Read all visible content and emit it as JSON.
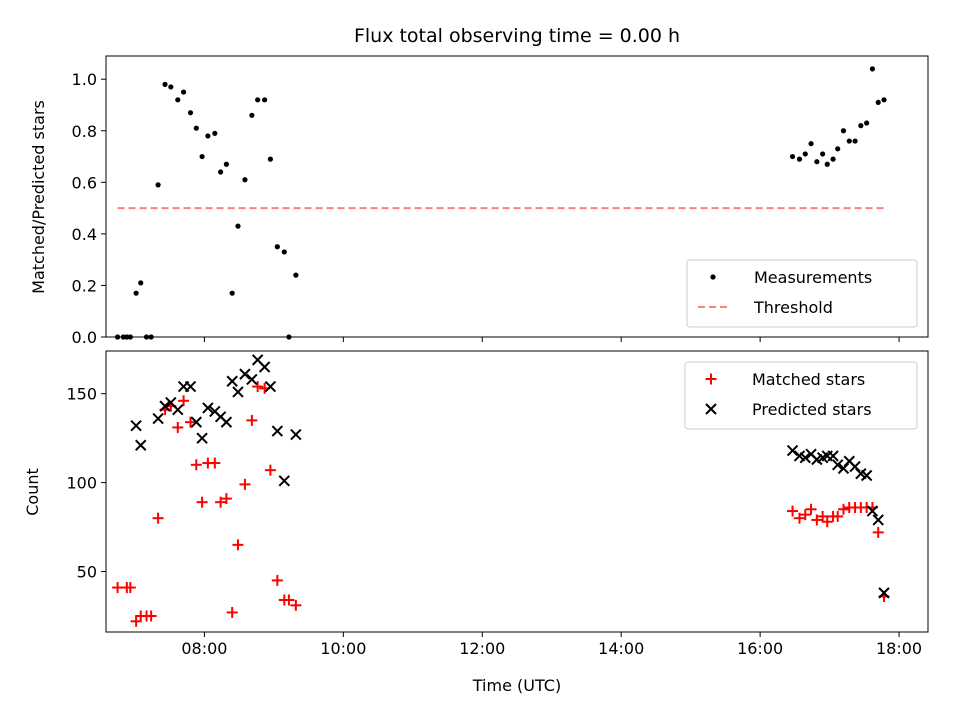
{
  "title": "Flux total observing time = 0.00 h",
  "chart_data": [
    {
      "type": "scatter",
      "panel": "top",
      "title": "Flux total observing time = 0.00 h",
      "xlabel": "",
      "ylabel": "Matched/Predicted stars",
      "xlim": [
        "06:35",
        "18:25"
      ],
      "ylim": [
        0,
        1.09
      ],
      "x_ticks": [
        "08:00",
        "10:00",
        "12:00",
        "14:00",
        "16:00",
        "18:00"
      ],
      "x_ticklabels_visible": false,
      "y_ticks": [
        0.0,
        0.2,
        0.4,
        0.6,
        0.8,
        1.0
      ],
      "y_ticklabels": [
        "0.0",
        "0.2",
        "0.4",
        "0.6",
        "0.8",
        "1.0"
      ],
      "legend_position": "bottom-right",
      "series": [
        {
          "name": "Measurements",
          "marker": "dot",
          "color": "#000000",
          "points": [
            [
              "06:45",
              0.0
            ],
            [
              "06:50",
              0.0
            ],
            [
              "06:53",
              0.0
            ],
            [
              "06:56",
              0.0
            ],
            [
              "07:01",
              0.17
            ],
            [
              "07:05",
              0.21
            ],
            [
              "07:10",
              0.0
            ],
            [
              "07:14",
              0.0
            ],
            [
              "07:20",
              0.59
            ],
            [
              "07:26",
              0.98
            ],
            [
              "07:31",
              0.97
            ],
            [
              "07:37",
              0.92
            ],
            [
              "07:42",
              0.95
            ],
            [
              "07:48",
              0.87
            ],
            [
              "07:53",
              0.81
            ],
            [
              "07:58",
              0.7
            ],
            [
              "08:03",
              0.78
            ],
            [
              "08:09",
              0.79
            ],
            [
              "08:14",
              0.64
            ],
            [
              "08:19",
              0.67
            ],
            [
              "08:24",
              0.17
            ],
            [
              "08:29",
              0.43
            ],
            [
              "08:35",
              0.61
            ],
            [
              "08:41",
              0.86
            ],
            [
              "08:46",
              0.92
            ],
            [
              "08:52",
              0.92
            ],
            [
              "08:57",
              0.69
            ],
            [
              "09:03",
              0.35
            ],
            [
              "09:09",
              0.33
            ],
            [
              "09:13",
              0.0
            ],
            [
              "09:19",
              0.24
            ],
            [
              "16:28",
              0.7
            ],
            [
              "16:34",
              0.69
            ],
            [
              "16:39",
              0.71
            ],
            [
              "16:44",
              0.75
            ],
            [
              "16:49",
              0.68
            ],
            [
              "16:54",
              0.71
            ],
            [
              "16:58",
              0.67
            ],
            [
              "17:03",
              0.69
            ],
            [
              "17:07",
              0.73
            ],
            [
              "17:12",
              0.8
            ],
            [
              "17:17",
              0.76
            ],
            [
              "17:22",
              0.76
            ],
            [
              "17:27",
              0.82
            ],
            [
              "17:32",
              0.83
            ],
            [
              "17:37",
              1.04
            ],
            [
              "17:42",
              0.91
            ],
            [
              "17:47",
              0.92
            ]
          ]
        },
        {
          "name": "Threshold",
          "marker": "dashed-line",
          "color": "#ff7f7f",
          "points": [
            [
              "06:45",
              0.5
            ],
            [
              "17:47",
              0.5
            ]
          ]
        }
      ]
    },
    {
      "type": "scatter",
      "panel": "bottom",
      "xlabel": "Time (UTC)",
      "ylabel": "Count",
      "xlim": [
        "06:35",
        "18:25"
      ],
      "ylim": [
        16,
        174
      ],
      "x_ticks": [
        "08:00",
        "10:00",
        "12:00",
        "14:00",
        "16:00",
        "18:00"
      ],
      "x_ticklabels": [
        "08:00",
        "10:00",
        "12:00",
        "14:00",
        "16:00",
        "18:00"
      ],
      "y_ticks": [
        50,
        100,
        150
      ],
      "y_ticklabels": [
        "50",
        "100",
        "150"
      ],
      "legend_position": "top-right",
      "series": [
        {
          "name": "Matched stars",
          "marker": "plus",
          "color": "#ff0000",
          "points": [
            [
              "06:45",
              41
            ],
            [
              "06:53",
              41
            ],
            [
              "06:56",
              41
            ],
            [
              "07:01",
              22
            ],
            [
              "07:05",
              25
            ],
            [
              "07:10",
              25
            ],
            [
              "07:14",
              25
            ],
            [
              "07:20",
              80
            ],
            [
              "07:26",
              141
            ],
            [
              "07:31",
              143
            ],
            [
              "07:37",
              131
            ],
            [
              "07:42",
              146
            ],
            [
              "07:48",
              134
            ],
            [
              "07:53",
              110
            ],
            [
              "07:58",
              89
            ],
            [
              "08:03",
              111
            ],
            [
              "08:09",
              111
            ],
            [
              "08:14",
              89
            ],
            [
              "08:19",
              91
            ],
            [
              "08:24",
              27
            ],
            [
              "08:29",
              65
            ],
            [
              "08:35",
              99
            ],
            [
              "08:41",
              135
            ],
            [
              "08:46",
              154
            ],
            [
              "08:52",
              153
            ],
            [
              "08:57",
              107
            ],
            [
              "09:03",
              45
            ],
            [
              "09:09",
              34
            ],
            [
              "09:13",
              34
            ],
            [
              "09:19",
              31
            ],
            [
              "16:28",
              84
            ],
            [
              "16:34",
              80
            ],
            [
              "16:39",
              82
            ],
            [
              "16:44",
              85
            ],
            [
              "16:49",
              79
            ],
            [
              "16:54",
              81
            ],
            [
              "16:58",
              78
            ],
            [
              "17:03",
              81
            ],
            [
              "17:07",
              81
            ],
            [
              "17:12",
              85
            ],
            [
              "17:17",
              86
            ],
            [
              "17:22",
              86
            ],
            [
              "17:27",
              86
            ],
            [
              "17:32",
              86
            ],
            [
              "17:37",
              86
            ],
            [
              "17:42",
              72
            ],
            [
              "17:47",
              36
            ]
          ]
        },
        {
          "name": "Predicted stars",
          "marker": "x",
          "color": "#000000",
          "points": [
            [
              "07:01",
              132
            ],
            [
              "07:05",
              121
            ],
            [
              "07:20",
              136
            ],
            [
              "07:26",
              143
            ],
            [
              "07:31",
              145
            ],
            [
              "07:37",
              141
            ],
            [
              "07:42",
              154
            ],
            [
              "07:48",
              154
            ],
            [
              "07:53",
              134
            ],
            [
              "07:58",
              125
            ],
            [
              "08:03",
              142
            ],
            [
              "08:09",
              140
            ],
            [
              "08:14",
              137
            ],
            [
              "08:19",
              134
            ],
            [
              "08:24",
              157
            ],
            [
              "08:29",
              151
            ],
            [
              "08:35",
              161
            ],
            [
              "08:41",
              158
            ],
            [
              "08:46",
              169
            ],
            [
              "08:52",
              165
            ],
            [
              "08:57",
              154
            ],
            [
              "09:03",
              129
            ],
            [
              "09:09",
              101
            ],
            [
              "09:19",
              127
            ],
            [
              "16:28",
              118
            ],
            [
              "16:34",
              115
            ],
            [
              "16:39",
              114
            ],
            [
              "16:44",
              116
            ],
            [
              "16:49",
              113
            ],
            [
              "16:54",
              114
            ],
            [
              "16:58",
              115
            ],
            [
              "17:03",
              115
            ],
            [
              "17:07",
              110
            ],
            [
              "17:12",
              108
            ],
            [
              "17:17",
              112
            ],
            [
              "17:22",
              109
            ],
            [
              "17:27",
              105
            ],
            [
              "17:32",
              104
            ],
            [
              "17:37",
              84
            ],
            [
              "17:42",
              79
            ],
            [
              "17:47",
              38
            ]
          ]
        }
      ]
    }
  ]
}
